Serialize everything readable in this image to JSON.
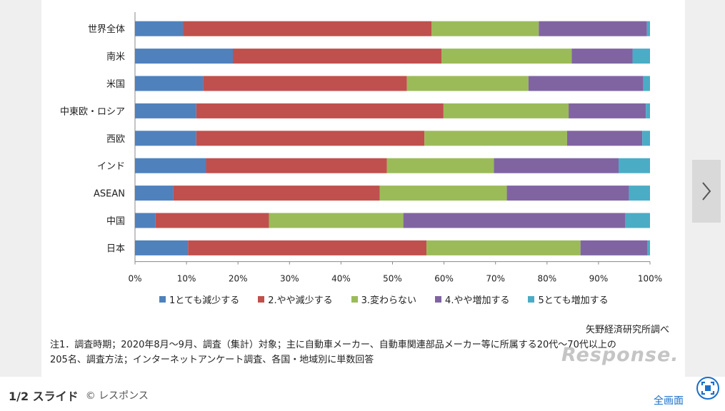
{
  "chart_data": {
    "type": "bar",
    "orientation": "horizontal",
    "stacked": true,
    "categories": [
      "世界全体",
      "南米",
      "米国",
      "中東欧・ロシア",
      "西欧",
      "インド",
      "ASEAN",
      "中国",
      "日本"
    ],
    "series": [
      {
        "name": "1とても減少する",
        "color": "#4f81bd",
        "values": [
          9.3,
          19.0,
          13.2,
          11.9,
          11.9,
          13.8,
          7.4,
          4.0,
          10.3
        ]
      },
      {
        "name": "2.やや減少する",
        "color": "#c0504d",
        "values": [
          48.3,
          40.5,
          39.6,
          48.0,
          44.3,
          35.1,
          40.1,
          22.0,
          46.3
        ]
      },
      {
        "name": "3.変わらない",
        "color": "#9bbb59",
        "values": [
          20.8,
          25.3,
          23.6,
          24.3,
          27.7,
          20.8,
          24.7,
          26.1,
          29.9
        ]
      },
      {
        "name": "4.やや増加する",
        "color": "#8064a2",
        "values": [
          21.0,
          11.8,
          22.3,
          15.0,
          14.6,
          24.2,
          23.7,
          43.1,
          13.0
        ]
      },
      {
        "name": "5とても増加する",
        "color": "#4bacc6",
        "values": [
          0.6,
          3.4,
          1.3,
          0.8,
          1.5,
          6.1,
          4.1,
          4.8,
          0.5
        ]
      }
    ],
    "xlim": [
      0,
      100
    ],
    "xticks": [
      "0%",
      "10%",
      "20%",
      "30%",
      "40%",
      "50%",
      "60%",
      "70%",
      "80%",
      "90%",
      "100%"
    ],
    "legend_position": "bottom",
    "grid": false
  },
  "source_note": "矢野経済研究所調べ",
  "footnote": {
    "line1": "注1．調査時期；2020年8月～9月、調査（集計）対象；主に自動車メーカー、自動車関連部品メーカー等に所属する20代～70代以上の",
    "line2": "205名、調査方法；インターネットアンケート調査、各国・地域別に単数回答"
  },
  "watermark": "Response.",
  "footer": {
    "counter": "1/2 スライド",
    "credit": "© レスポンス",
    "fullscreen_label": "全画面"
  },
  "icons": {
    "next": "chevron-right-icon",
    "fullscreen": "fullscreen-icon"
  }
}
